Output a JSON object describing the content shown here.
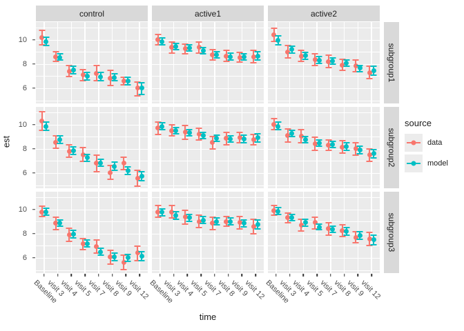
{
  "axes": {
    "x_title": "time",
    "y_title": "est",
    "x_categories": [
      "Baseline",
      "visit 3",
      "visit 4",
      "visit 5",
      "visit 7",
      "visit 8",
      "visit 9",
      "visit 12"
    ],
    "y_ticks": [
      10,
      8,
      6
    ]
  },
  "legend": {
    "title": "source",
    "entries": [
      {
        "label": "data",
        "color": "#F8766D"
      },
      {
        "label": "model",
        "color": "#00BFC4"
      }
    ]
  },
  "style_colors": {
    "panel_bg": "#EBEBEB",
    "strip_bg": "#D9D9D9",
    "grid": "#FFFFFF",
    "axis_text": "#4D4D4D"
  },
  "chart_data": {
    "type": "pointrange-facet-grid",
    "title": "",
    "xlabel": "time",
    "ylabel": "est",
    "col_facets": [
      "control",
      "active1",
      "active2"
    ],
    "row_facets": [
      "subgroup1",
      "subgroup2",
      "subgroup3"
    ],
    "x": [
      "Baseline",
      "visit 3",
      "visit 4",
      "visit 5",
      "visit 7",
      "visit 8",
      "visit 9",
      "visit 12"
    ],
    "ylim": [
      4.75,
      11.45
    ],
    "y_major_gridlines": [
      10,
      8,
      6
    ],
    "y_minor_gridlines": [
      11,
      9,
      7,
      5
    ],
    "series_names": [
      "data",
      "model"
    ],
    "panels": [
      {
        "col": "control",
        "row": "subgroup1",
        "data": {
          "est": [
            10.15,
            8.6,
            7.4,
            7.1,
            7.2,
            6.85,
            6.6,
            6.0
          ],
          "lo": [
            9.55,
            8.2,
            6.95,
            6.6,
            6.6,
            6.2,
            6.3,
            5.4
          ],
          "hi": [
            10.75,
            9.0,
            7.85,
            7.55,
            7.85,
            7.5,
            6.9,
            6.5
          ]
        },
        "model": {
          "est": [
            9.85,
            8.55,
            7.5,
            7.0,
            6.95,
            6.9,
            6.6,
            6.0
          ],
          "lo": [
            9.5,
            8.3,
            7.2,
            6.7,
            6.65,
            6.6,
            6.3,
            5.5
          ],
          "hi": [
            10.2,
            8.85,
            7.8,
            7.3,
            7.3,
            7.2,
            6.9,
            6.45
          ]
        }
      },
      {
        "col": "active1",
        "row": "subgroup1",
        "data": {
          "est": [
            10.0,
            9.35,
            9.25,
            9.35,
            8.75,
            8.65,
            8.55,
            8.6
          ],
          "lo": [
            9.6,
            8.9,
            8.85,
            8.9,
            8.3,
            8.2,
            8.15,
            8.1
          ],
          "hi": [
            10.45,
            9.8,
            9.65,
            9.8,
            9.2,
            9.1,
            8.95,
            9.1
          ]
        },
        "model": {
          "est": [
            9.85,
            9.45,
            9.3,
            9.1,
            8.75,
            8.6,
            8.6,
            8.65
          ],
          "lo": [
            9.55,
            9.15,
            9.05,
            8.85,
            8.5,
            8.3,
            8.35,
            8.3
          ],
          "hi": [
            10.15,
            9.7,
            9.55,
            9.35,
            9.0,
            8.9,
            8.85,
            9.0
          ]
        }
      },
      {
        "col": "active2",
        "row": "subgroup1",
        "data": {
          "est": [
            10.4,
            9.0,
            8.65,
            8.35,
            8.2,
            7.9,
            7.85,
            7.3
          ],
          "lo": [
            9.85,
            8.5,
            8.2,
            7.85,
            7.7,
            7.45,
            7.35,
            6.8
          ],
          "hi": [
            10.95,
            9.5,
            9.1,
            8.85,
            8.7,
            8.4,
            8.3,
            7.8
          ]
        },
        "model": {
          "est": [
            9.95,
            9.2,
            8.7,
            8.3,
            8.25,
            8.05,
            7.65,
            7.45
          ],
          "lo": [
            9.6,
            8.9,
            8.4,
            8.05,
            8.0,
            7.8,
            7.35,
            7.1
          ],
          "hi": [
            10.3,
            9.45,
            8.95,
            8.6,
            8.5,
            8.3,
            7.9,
            7.8
          ]
        }
      },
      {
        "col": "control",
        "row": "subgroup2",
        "data": {
          "est": [
            10.3,
            8.55,
            7.8,
            7.5,
            6.8,
            6.05,
            6.8,
            5.55
          ],
          "lo": [
            9.5,
            8.05,
            7.3,
            6.95,
            6.1,
            5.5,
            6.3,
            4.9
          ],
          "hi": [
            11.05,
            9.05,
            8.3,
            8.1,
            7.45,
            6.6,
            7.3,
            6.2
          ]
        },
        "model": {
          "est": [
            9.85,
            8.75,
            7.85,
            7.25,
            6.85,
            6.55,
            6.2,
            5.75
          ],
          "lo": [
            9.5,
            8.45,
            7.55,
            6.95,
            6.55,
            6.25,
            5.9,
            5.4
          ],
          "hi": [
            10.2,
            9.05,
            8.15,
            7.55,
            7.15,
            6.9,
            6.5,
            6.1
          ]
        }
      },
      {
        "col": "active1",
        "row": "subgroup2",
        "data": {
          "est": [
            9.7,
            9.5,
            9.35,
            9.2,
            8.5,
            8.85,
            8.9,
            8.75
          ],
          "lo": [
            9.2,
            9.05,
            8.8,
            8.7,
            8.0,
            8.35,
            8.5,
            8.3
          ],
          "hi": [
            10.2,
            9.95,
            9.9,
            9.7,
            9.0,
            9.35,
            9.35,
            9.2
          ]
        },
        "model": {
          "est": [
            9.85,
            9.5,
            9.3,
            9.1,
            8.85,
            8.8,
            8.8,
            8.9
          ],
          "lo": [
            9.55,
            9.25,
            9.05,
            8.85,
            8.6,
            8.55,
            8.5,
            8.55
          ],
          "hi": [
            10.15,
            9.75,
            9.55,
            9.35,
            9.1,
            9.05,
            9.1,
            9.25
          ]
        }
      },
      {
        "col": "active2",
        "row": "subgroup2",
        "data": {
          "est": [
            10.0,
            9.1,
            9.05,
            8.4,
            8.3,
            8.15,
            8.0,
            7.5
          ],
          "lo": [
            9.55,
            8.55,
            8.5,
            7.9,
            7.9,
            7.65,
            7.5,
            6.95
          ],
          "hi": [
            10.5,
            9.65,
            9.6,
            8.95,
            8.75,
            8.65,
            8.5,
            8.0
          ]
        },
        "model": {
          "est": [
            9.85,
            9.25,
            8.75,
            8.45,
            8.35,
            8.2,
            7.9,
            7.6
          ],
          "lo": [
            9.55,
            9.0,
            8.5,
            8.2,
            8.1,
            7.9,
            7.6,
            7.25
          ],
          "hi": [
            10.2,
            9.5,
            9.0,
            8.7,
            8.6,
            8.5,
            8.2,
            7.95
          ]
        }
      },
      {
        "col": "control",
        "row": "subgroup3",
        "data": {
          "est": [
            9.8,
            8.85,
            7.9,
            7.15,
            6.95,
            6.1,
            5.65,
            6.4
          ],
          "lo": [
            9.4,
            8.35,
            7.35,
            6.7,
            6.4,
            5.5,
            5.05,
            5.8
          ],
          "hi": [
            10.25,
            9.35,
            8.45,
            7.6,
            7.5,
            6.65,
            6.2,
            6.95
          ]
        },
        "model": {
          "est": [
            9.8,
            8.85,
            7.95,
            7.15,
            6.5,
            6.1,
            6.0,
            6.15
          ],
          "lo": [
            9.5,
            8.6,
            7.65,
            6.9,
            6.2,
            5.8,
            5.7,
            5.8
          ],
          "hi": [
            10.1,
            9.15,
            8.25,
            7.45,
            6.8,
            6.4,
            6.3,
            6.5
          ]
        }
      },
      {
        "col": "active1",
        "row": "subgroup3",
        "data": {
          "est": [
            9.8,
            9.8,
            9.35,
            9.0,
            8.85,
            9.0,
            8.9,
            8.6
          ],
          "lo": [
            9.35,
            9.3,
            8.8,
            8.5,
            8.35,
            8.6,
            8.4,
            8.0
          ],
          "hi": [
            10.3,
            10.3,
            9.9,
            9.5,
            9.35,
            9.4,
            9.4,
            9.2
          ]
        },
        "model": {
          "est": [
            9.75,
            9.5,
            9.3,
            9.1,
            9.0,
            9.0,
            8.85,
            8.75
          ],
          "lo": [
            9.45,
            9.2,
            9.0,
            8.85,
            8.75,
            8.7,
            8.55,
            8.4
          ],
          "hi": [
            10.05,
            9.8,
            9.6,
            9.4,
            9.3,
            9.3,
            9.15,
            9.1
          ]
        }
      },
      {
        "col": "active2",
        "row": "subgroup3",
        "data": {
          "est": [
            9.9,
            9.3,
            8.7,
            8.9,
            8.4,
            8.25,
            7.7,
            7.55
          ],
          "lo": [
            9.5,
            8.9,
            8.2,
            8.4,
            7.9,
            7.75,
            7.25,
            7.0
          ],
          "hi": [
            10.3,
            9.7,
            9.2,
            9.35,
            8.9,
            8.7,
            8.15,
            8.1
          ]
        },
        "model": {
          "est": [
            9.85,
            9.3,
            8.9,
            8.55,
            8.35,
            8.2,
            7.85,
            7.5
          ],
          "lo": [
            9.6,
            9.05,
            8.6,
            8.3,
            8.1,
            7.9,
            7.55,
            7.1
          ],
          "hi": [
            10.15,
            9.55,
            9.2,
            8.8,
            8.6,
            8.5,
            8.15,
            7.9
          ]
        }
      }
    ]
  }
}
